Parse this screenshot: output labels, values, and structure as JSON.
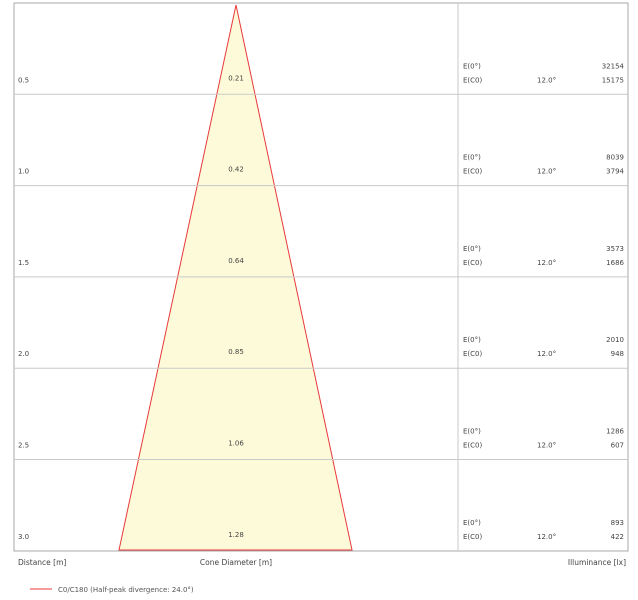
{
  "diagram": {
    "bottom_labels": {
      "distance": "Distance [m]",
      "cone_diameter": "Cone Diameter [m]",
      "illuminance": "Illuminance [lx]"
    },
    "legend": "C0/C180 (Half-peak divergence: 24.0°)",
    "colors": {
      "cone_fill": "#fcfad8",
      "cone_edge": "#e8393a",
      "grid": "#c9c9c9",
      "frame": "#a8a8a8"
    },
    "rows": [
      {
        "distance": "0.5",
        "diameter": "0.21",
        "e0_label": "E(0°)",
        "ec0_label": "E(C0)",
        "angle": "12.0°",
        "e0_value": "32154",
        "ec0_value": "15175"
      },
      {
        "distance": "1.0",
        "diameter": "0.42",
        "e0_label": "E(0°)",
        "ec0_label": "E(C0)",
        "angle": "12.0°",
        "e0_value": "8039",
        "ec0_value": "3794"
      },
      {
        "distance": "1.5",
        "diameter": "0.64",
        "e0_label": "E(0°)",
        "ec0_label": "E(C0)",
        "angle": "12.0°",
        "e0_value": "3573",
        "ec0_value": "1686"
      },
      {
        "distance": "2.0",
        "diameter": "0.85",
        "e0_label": "E(0°)",
        "ec0_label": "E(C0)",
        "angle": "12.0°",
        "e0_value": "2010",
        "ec0_value": "948"
      },
      {
        "distance": "2.5",
        "diameter": "1.06",
        "e0_label": "E(0°)",
        "ec0_label": "E(C0)",
        "angle": "12.0°",
        "e0_value": "1286",
        "ec0_value": "607"
      },
      {
        "distance": "3.0",
        "diameter": "1.28",
        "e0_label": "E(0°)",
        "ec0_label": "E(C0)",
        "angle": "12.0°",
        "e0_value": "893",
        "ec0_value": "422"
      }
    ]
  }
}
